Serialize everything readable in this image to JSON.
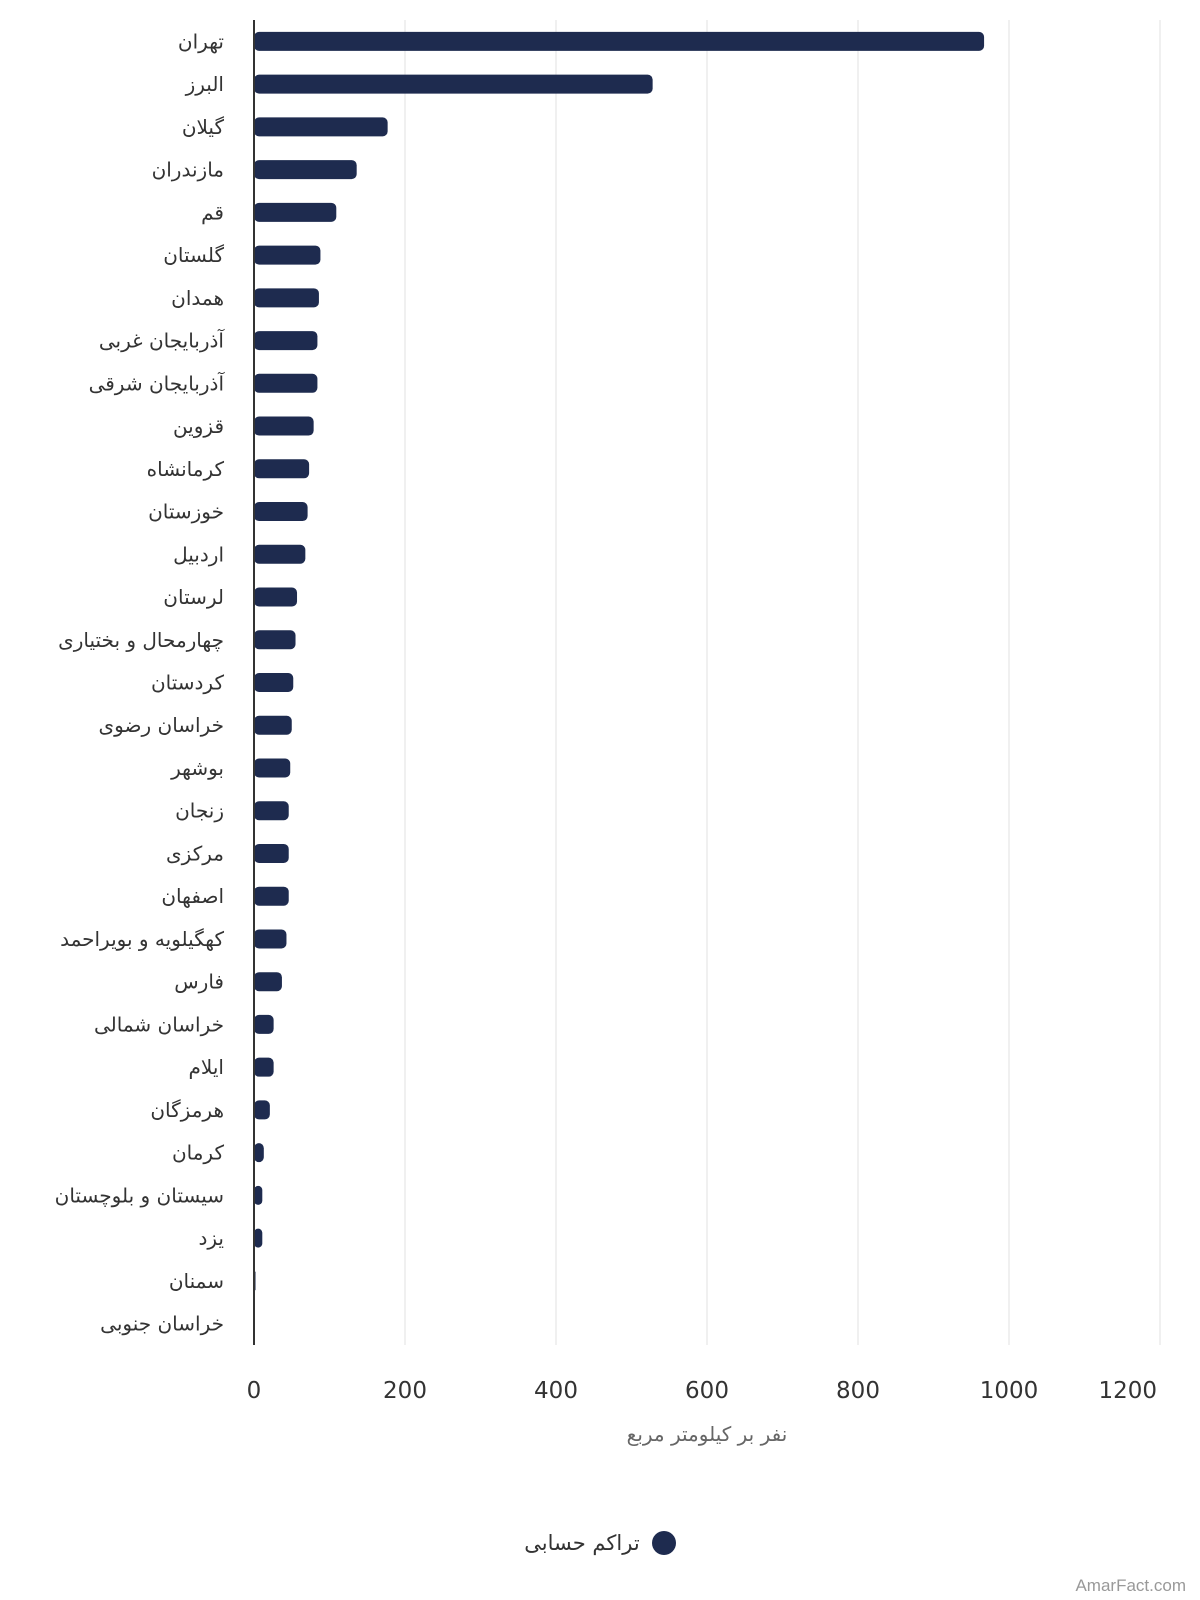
{
  "chart_data": {
    "type": "bar",
    "orientation": "horizontal",
    "categories": [
      "تهران",
      "البرز",
      "گیلان",
      "مازندران",
      "قم",
      "گلستان",
      "همدان",
      "آذربایجان غربی",
      "آذربایجان شرقی",
      "قزوین",
      "کرمانشاه",
      "خوزستان",
      "اردبیل",
      "لرستان",
      "چهارمحال و بختیاری",
      "کردستان",
      "خراسان رضوی",
      "بوشهر",
      "زنجان",
      "مرکزی",
      "اصفهان",
      "کهگیلویه و بویراحمد",
      "فارس",
      "خراسان شمالی",
      "ایلام",
      "هرمزگان",
      "کرمان",
      "سیستان و بلوچستان",
      "یزد",
      "سمنان",
      "خراسان جنوبی"
    ],
    "series": [
      {
        "name": "تراکم حسابی",
        "color": "#1e2b4f",
        "values": [
          967,
          528,
          177,
          136,
          109,
          88,
          86,
          84,
          84,
          79,
          73,
          71,
          68,
          57,
          55,
          52,
          50,
          48,
          46,
          46,
          46,
          43,
          37,
          26,
          26,
          21,
          13,
          11,
          11,
          2,
          0
        ]
      }
    ],
    "xlabel": "نفر بر کیلومتر مربع",
    "xlim": [
      0,
      1200
    ],
    "xticks": [
      "0",
      "200",
      "400",
      "600",
      "800",
      "1000",
      "1200"
    ],
    "grid": true,
    "legend_position": "bottom"
  },
  "legend": {
    "label": "تراکم حسابی",
    "color": "#1e2b4f"
  },
  "watermark": "AmarFact.com"
}
